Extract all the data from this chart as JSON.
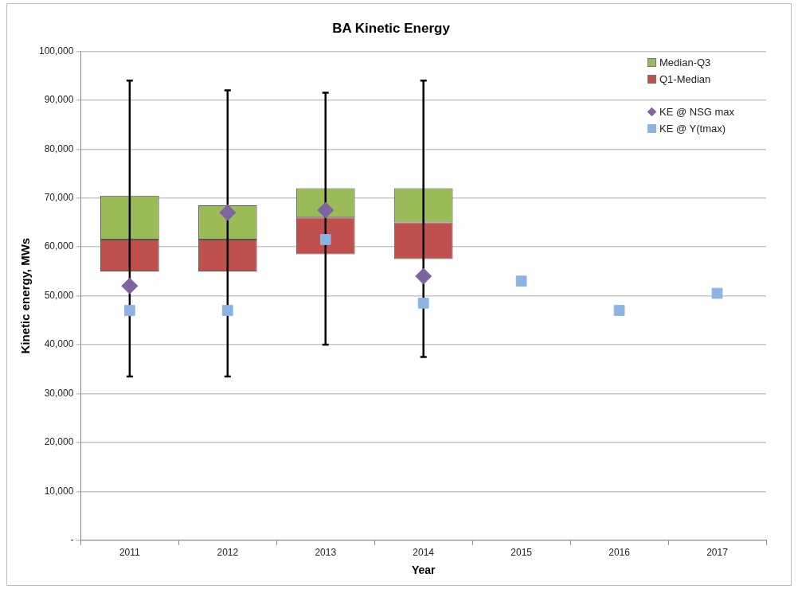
{
  "chart_data": {
    "type": "bar",
    "title": "BA Kinetic Energy",
    "xlabel": "Year",
    "ylabel": "Kinetic energy, MWs",
    "categories": [
      "2011",
      "2012",
      "2013",
      "2014",
      "2015",
      "2016",
      "2017"
    ],
    "stacked": true,
    "grid": "y",
    "legend": "top right",
    "ylim": [
      0,
      100000
    ],
    "yticks": [
      {
        "value": 0,
        "label": "-"
      },
      {
        "value": 10000,
        "label": "10,000"
      },
      {
        "value": 20000,
        "label": "20,000"
      },
      {
        "value": 30000,
        "label": "30,000"
      },
      {
        "value": 40000,
        "label": "40,000"
      },
      {
        "value": 50000,
        "label": "50,000"
      },
      {
        "value": 60000,
        "label": "60,000"
      },
      {
        "value": 70000,
        "label": "70,000"
      },
      {
        "value": 80000,
        "label": "80,000"
      },
      {
        "value": 90000,
        "label": "90,000"
      },
      {
        "value": 100000,
        "label": "100,000"
      }
    ],
    "series": [
      {
        "name": "Q1-Median",
        "color": "#c0504d",
        "base": [
          55000,
          55000,
          58500,
          57500,
          null,
          null,
          null
        ],
        "values": [
          6500,
          6500,
          7500,
          7500,
          null,
          null,
          null
        ],
        "errors": [
          [
            33500,
            94000
          ],
          [
            33500,
            92000
          ],
          [
            40000,
            91500
          ],
          [
            37500,
            94000
          ],
          null,
          null,
          null
        ]
      },
      {
        "name": "Median-Q3",
        "color": "#9bbb59",
        "values": [
          9000,
          7000,
          6000,
          7000,
          null,
          null,
          null
        ]
      },
      {
        "name": "KE @ NSG max",
        "type": "scatter",
        "color": "#8064a2",
        "marker": "diamond",
        "values": [
          52000,
          67000,
          67500,
          54000,
          null,
          null,
          null
        ]
      },
      {
        "name": "KE @ Y(tmax)",
        "type": "scatter",
        "color": "#8db3e2",
        "marker": "square",
        "values": [
          47000,
          47000,
          61500,
          48500,
          53000,
          47000,
          50500
        ]
      }
    ]
  }
}
